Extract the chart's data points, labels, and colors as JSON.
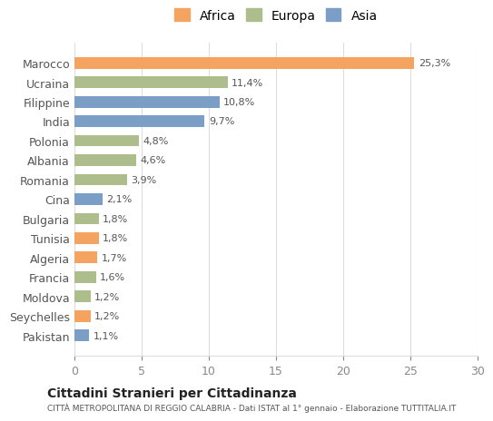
{
  "countries": [
    "Marocco",
    "Ucraina",
    "Filippine",
    "India",
    "Polonia",
    "Albania",
    "Romania",
    "Cina",
    "Bulgaria",
    "Tunisia",
    "Algeria",
    "Francia",
    "Moldova",
    "Seychelles",
    "Pakistan"
  ],
  "values": [
    25.3,
    11.4,
    10.8,
    9.7,
    4.8,
    4.6,
    3.9,
    2.1,
    1.8,
    1.8,
    1.7,
    1.6,
    1.2,
    1.2,
    1.1
  ],
  "labels": [
    "25,3%",
    "11,4%",
    "10,8%",
    "9,7%",
    "4,8%",
    "4,6%",
    "3,9%",
    "2,1%",
    "1,8%",
    "1,8%",
    "1,7%",
    "1,6%",
    "1,2%",
    "1,2%",
    "1,1%"
  ],
  "continents": [
    "Africa",
    "Europa",
    "Asia",
    "Asia",
    "Europa",
    "Europa",
    "Europa",
    "Asia",
    "Europa",
    "Africa",
    "Africa",
    "Europa",
    "Europa",
    "Africa",
    "Asia"
  ],
  "colors": {
    "Africa": "#F4A460",
    "Europa": "#ADBE8C",
    "Asia": "#7B9EC7"
  },
  "xlim": [
    0,
    30
  ],
  "xticks": [
    0,
    5,
    10,
    15,
    20,
    25,
    30
  ],
  "title": "Cittadini Stranieri per Cittadinanza",
  "subtitle": "CITTÀ METROPOLITANA DI REGGIO CALABRIA - Dati ISTAT al 1° gennaio - Elaborazione TUTTITALIA.IT",
  "bg_color": "#ffffff",
  "grid_color": "#dddddd",
  "bar_height": 0.6
}
